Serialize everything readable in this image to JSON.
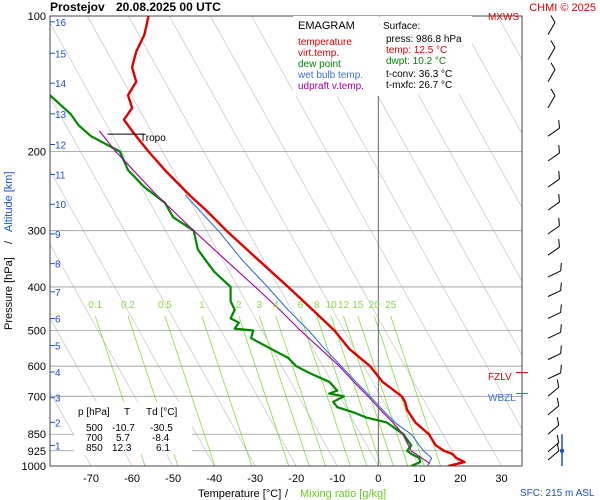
{
  "header": {
    "station": "Prostejov",
    "datetime": "20.08.2025 00 UTC",
    "credit": "CHMI © 2025"
  },
  "colors": {
    "temperature": "#e00000",
    "virt_temp": "#e00000",
    "dew_point": "#008800",
    "wet_bulb": "#3a6fd8",
    "parcel": "#a000a0",
    "mixing_ratio": "#88dd44",
    "altitude": "#1a4ed8",
    "isobar": "#999999",
    "isotherm": "#cccccc"
  },
  "legend": {
    "title": "EMAGRAM",
    "items": [
      {
        "label": "temperature",
        "color": "#e00000"
      },
      {
        "label": "virt.temp.",
        "color": "#e00000"
      },
      {
        "label": "dew point",
        "color": "#008800"
      },
      {
        "label": "wet bulb temp.",
        "color": "#3a6fd8"
      },
      {
        "label": "udpraft v.temp.",
        "color": "#a000a0"
      }
    ]
  },
  "surface": {
    "title": "Surface:",
    "press": "press: 986.8 hPa",
    "temp": "temp: 12.5 °C",
    "dwpt": "dwpt: 10.2 °C",
    "tconv": "t-conv: 36.3 °C",
    "tmxfc": "t-mxfc: 26.7 °C"
  },
  "table": {
    "headers": [
      "p [hPa]",
      "T",
      "Td [°C]"
    ],
    "rows": [
      [
        "500",
        "-10.7",
        "-30.5"
      ],
      [
        "700",
        "5.7",
        "-8.4"
      ],
      [
        "850",
        "12.3",
        "6.1"
      ]
    ]
  },
  "axis": {
    "ylabel_left": "Pressure [hPa]",
    "ylabel_sep": "/",
    "ylabel_right": "Altitude [km]",
    "xlabel_temp": "Temperature [°C]",
    "xlabel_sep": "/",
    "xlabel_mix": "Mixing ratio [g/kg]",
    "sfc_label": "SFC: 215 m ASL"
  },
  "markers": {
    "tropo": "Tropo",
    "mxws": "MXWS",
    "fzlv": "FZLV",
    "wbzl": "WBZL"
  },
  "chart_data": {
    "type": "line",
    "x_scale": "linear",
    "y_scale": "log",
    "xlim": [
      -80,
      35
    ],
    "ylim": [
      1000,
      100
    ],
    "x_ticks": [
      -70,
      -60,
      -50,
      -40,
      -30,
      -20,
      -10,
      0,
      10,
      20,
      30
    ],
    "x_tick_labels": [
      "-70",
      "-60",
      "-50",
      "-40",
      "-30",
      "-20",
      "-10",
      "0",
      "10",
      "20",
      "30"
    ],
    "pressure_ticks": [
      100,
      200,
      300,
      400,
      500,
      600,
      700,
      850,
      925,
      1000
    ],
    "pressure_tick_labels": [
      "100",
      "200",
      "300",
      "400",
      "500",
      "600",
      "700",
      "850",
      "925",
      "1000"
    ],
    "altitude_ticks_km": [
      1,
      2,
      3,
      4,
      5,
      6,
      7,
      8,
      9,
      10,
      11,
      12,
      13,
      14,
      15,
      16
    ],
    "altitude_tick_labels": [
      "1",
      "2",
      "3",
      "4",
      "5",
      "6",
      "7",
      "8",
      "9",
      "10",
      "11",
      "12",
      "13",
      "14",
      "15",
      "16"
    ],
    "altitude_tick_pressures": [
      900,
      800,
      705,
      618,
      540,
      470,
      410,
      355,
      305,
      262,
      225,
      193,
      165,
      141,
      121,
      103
    ],
    "mixing_ratio_labels": [
      "0.1",
      "0.2",
      "0.5",
      "1",
      "2",
      "3",
      "4",
      "6",
      "8",
      "10",
      "12",
      "15",
      "20",
      "25"
    ],
    "mixing_ratio_label_temps": [
      -69,
      -61,
      -52,
      -43,
      -34,
      -29,
      -25,
      -19,
      -15,
      -11.5,
      -8.5,
      -5,
      -1,
      3
    ],
    "mixing_ratio_label_pressure": 450,
    "tropopause_pressure": 183,
    "freezing_level_pressure": 620,
    "wet_bulb_zero_pressure": 690,
    "series": [
      {
        "name": "temperature",
        "color": "#e00000",
        "points": [
          [
            1000,
            17
          ],
          [
            980,
            21
          ],
          [
            960,
            19
          ],
          [
            940,
            18
          ],
          [
            925,
            16
          ],
          [
            900,
            14
          ],
          [
            850,
            12.3
          ],
          [
            800,
            9
          ],
          [
            750,
            7
          ],
          [
            720,
            6.5
          ],
          [
            700,
            5.7
          ],
          [
            650,
            1
          ],
          [
            600,
            -2
          ],
          [
            550,
            -7
          ],
          [
            500,
            -10.7
          ],
          [
            450,
            -16
          ],
          [
            400,
            -22
          ],
          [
            350,
            -29
          ],
          [
            300,
            -37
          ],
          [
            270,
            -42
          ],
          [
            250,
            -46
          ],
          [
            220,
            -52
          ],
          [
            200,
            -56
          ],
          [
            190,
            -58
          ],
          [
            180,
            -60
          ],
          [
            170,
            -62
          ],
          [
            160,
            -60
          ],
          [
            150,
            -61
          ],
          [
            140,
            -59
          ],
          [
            130,
            -60
          ],
          [
            120,
            -59
          ],
          [
            110,
            -57
          ],
          [
            100,
            -56
          ]
        ]
      },
      {
        "name": "dew point",
        "color": "#008800",
        "points": [
          [
            1000,
            8
          ],
          [
            980,
            10.2
          ],
          [
            960,
            10
          ],
          [
            940,
            8
          ],
          [
            925,
            7
          ],
          [
            900,
            8
          ],
          [
            850,
            6.1
          ],
          [
            800,
            2
          ],
          [
            780,
            -3
          ],
          [
            760,
            -6
          ],
          [
            740,
            -10
          ],
          [
            720,
            -11
          ],
          [
            700,
            -8.4
          ],
          [
            690,
            -12
          ],
          [
            680,
            -10
          ],
          [
            650,
            -12
          ],
          [
            620,
            -17
          ],
          [
            600,
            -20
          ],
          [
            575,
            -22
          ],
          [
            550,
            -26
          ],
          [
            520,
            -31
          ],
          [
            500,
            -30.5
          ],
          [
            495,
            -35
          ],
          [
            480,
            -34
          ],
          [
            470,
            -36
          ],
          [
            450,
            -35
          ],
          [
            430,
            -36
          ],
          [
            400,
            -36
          ],
          [
            370,
            -40
          ],
          [
            350,
            -42
          ],
          [
            330,
            -44
          ],
          [
            300,
            -45
          ],
          [
            280,
            -50
          ],
          [
            260,
            -52
          ],
          [
            240,
            -57
          ],
          [
            220,
            -61
          ],
          [
            200,
            -63
          ],
          [
            185,
            -70
          ],
          [
            175,
            -73
          ],
          [
            165,
            -75
          ],
          [
            150,
            -80
          ]
        ]
      },
      {
        "name": "wet bulb temp.",
        "color": "#3a6fd8",
        "points": [
          [
            1000,
            12
          ],
          [
            960,
            13
          ],
          [
            925,
            11
          ],
          [
            900,
            10
          ],
          [
            850,
            8
          ],
          [
            800,
            4
          ],
          [
            750,
            1
          ],
          [
            700,
            -2
          ],
          [
            650,
            -5.5
          ],
          [
            600,
            -9
          ],
          [
            550,
            -13
          ],
          [
            500,
            -17
          ],
          [
            450,
            -22
          ],
          [
            400,
            -27
          ],
          [
            350,
            -33
          ],
          [
            300,
            -39
          ],
          [
            250,
            -47
          ]
        ]
      },
      {
        "name": "udpraft v.temp.",
        "color": "#a000a0",
        "points": [
          [
            986.8,
            12.5
          ],
          [
            925,
            8
          ],
          [
            850,
            6
          ],
          [
            800,
            3.5
          ],
          [
            750,
            0.5
          ],
          [
            700,
            -2.5
          ],
          [
            650,
            -6
          ],
          [
            600,
            -9.5
          ],
          [
            550,
            -14
          ],
          [
            500,
            -19
          ],
          [
            450,
            -24
          ],
          [
            400,
            -30
          ],
          [
            350,
            -37
          ],
          [
            300,
            -45
          ],
          [
            250,
            -54
          ],
          [
            200,
            -64
          ],
          [
            180,
            -68
          ]
        ]
      }
    ]
  }
}
